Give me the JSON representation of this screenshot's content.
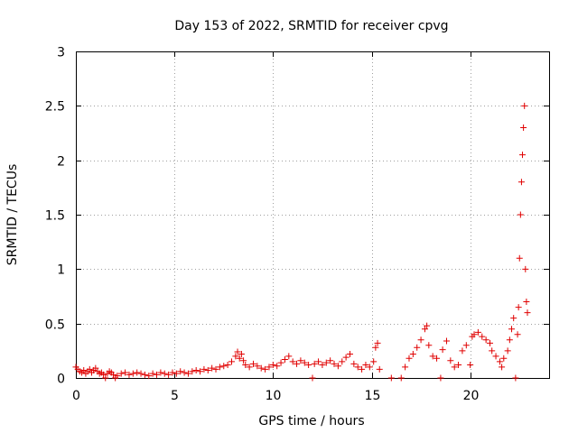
{
  "chart_data": {
    "type": "scatter",
    "title": "Day 153 of 2022, SRMTID for receiver cpvg",
    "xlabel": "GPS time / hours",
    "ylabel": "SRMTID / TECUs",
    "xlim": [
      0,
      24
    ],
    "ylim": [
      0,
      3
    ],
    "grid": true,
    "legend": "none",
    "xticks": [
      0,
      5,
      10,
      15,
      20
    ],
    "xtick_labels": [
      "0",
      "5",
      "10",
      "15",
      "20"
    ],
    "yticks": [
      0,
      0.5,
      1,
      1.5,
      2,
      2.5,
      3
    ],
    "ytick_labels": [
      "0",
      "0.5",
      "1",
      "1.5",
      "2",
      "2.5",
      "3"
    ],
    "series": [
      {
        "name": "cpvg",
        "color": "#e00000",
        "marker": "plus",
        "points": [
          [
            0.0,
            0.1
          ],
          [
            0.1,
            0.08
          ],
          [
            0.2,
            0.06
          ],
          [
            0.3,
            0.05
          ],
          [
            0.4,
            0.07
          ],
          [
            0.5,
            0.04
          ],
          [
            0.6,
            0.06
          ],
          [
            0.7,
            0.08
          ],
          [
            0.8,
            0.05
          ],
          [
            0.9,
            0.07
          ],
          [
            1.0,
            0.09
          ],
          [
            1.1,
            0.06
          ],
          [
            1.2,
            0.04
          ],
          [
            1.3,
            0.05
          ],
          [
            1.4,
            0.03
          ],
          [
            1.5,
            0.0
          ],
          [
            1.6,
            0.04
          ],
          [
            1.7,
            0.06
          ],
          [
            1.8,
            0.05
          ],
          [
            1.9,
            0.03
          ],
          [
            2.0,
            0.0
          ],
          [
            2.1,
            0.02
          ],
          [
            2.3,
            0.04
          ],
          [
            2.5,
            0.05
          ],
          [
            2.7,
            0.03
          ],
          [
            2.9,
            0.04
          ],
          [
            3.1,
            0.05
          ],
          [
            3.3,
            0.04
          ],
          [
            3.5,
            0.03
          ],
          [
            3.7,
            0.02
          ],
          [
            3.9,
            0.04
          ],
          [
            4.1,
            0.03
          ],
          [
            4.3,
            0.05
          ],
          [
            4.5,
            0.04
          ],
          [
            4.7,
            0.03
          ],
          [
            4.9,
            0.05
          ],
          [
            5.1,
            0.04
          ],
          [
            5.3,
            0.06
          ],
          [
            5.5,
            0.05
          ],
          [
            5.7,
            0.04
          ],
          [
            5.9,
            0.06
          ],
          [
            6.1,
            0.07
          ],
          [
            6.3,
            0.06
          ],
          [
            6.5,
            0.08
          ],
          [
            6.7,
            0.07
          ],
          [
            6.9,
            0.09
          ],
          [
            7.1,
            0.08
          ],
          [
            7.3,
            0.1
          ],
          [
            7.5,
            0.11
          ],
          [
            7.7,
            0.12
          ],
          [
            7.9,
            0.15
          ],
          [
            8.1,
            0.2
          ],
          [
            8.2,
            0.24
          ],
          [
            8.3,
            0.18
          ],
          [
            8.4,
            0.22
          ],
          [
            8.5,
            0.16
          ],
          [
            8.6,
            0.12
          ],
          [
            8.8,
            0.1
          ],
          [
            9.0,
            0.13
          ],
          [
            9.2,
            0.11
          ],
          [
            9.4,
            0.09
          ],
          [
            9.6,
            0.08
          ],
          [
            9.8,
            0.1
          ],
          [
            10.0,
            0.12
          ],
          [
            10.2,
            0.11
          ],
          [
            10.4,
            0.14
          ],
          [
            10.6,
            0.17
          ],
          [
            10.8,
            0.2
          ],
          [
            11.0,
            0.15
          ],
          [
            11.2,
            0.13
          ],
          [
            11.4,
            0.16
          ],
          [
            11.6,
            0.14
          ],
          [
            11.8,
            0.12
          ],
          [
            12.0,
            0.0
          ],
          [
            12.1,
            0.13
          ],
          [
            12.3,
            0.15
          ],
          [
            12.5,
            0.12
          ],
          [
            12.7,
            0.14
          ],
          [
            12.9,
            0.16
          ],
          [
            13.1,
            0.13
          ],
          [
            13.3,
            0.11
          ],
          [
            13.5,
            0.15
          ],
          [
            13.7,
            0.19
          ],
          [
            13.9,
            0.22
          ],
          [
            14.1,
            0.13
          ],
          [
            14.3,
            0.1
          ],
          [
            14.5,
            0.08
          ],
          [
            14.7,
            0.12
          ],
          [
            14.9,
            0.1
          ],
          [
            15.1,
            0.15
          ],
          [
            15.2,
            0.28
          ],
          [
            15.3,
            0.32
          ],
          [
            15.4,
            0.08
          ],
          [
            16.0,
            0.0
          ],
          [
            16.5,
            0.0
          ],
          [
            16.7,
            0.1
          ],
          [
            16.9,
            0.18
          ],
          [
            17.1,
            0.22
          ],
          [
            17.3,
            0.28
          ],
          [
            17.5,
            0.35
          ],
          [
            17.7,
            0.45
          ],
          [
            17.8,
            0.48
          ],
          [
            17.9,
            0.3
          ],
          [
            18.1,
            0.2
          ],
          [
            18.3,
            0.18
          ],
          [
            18.5,
            0.0
          ],
          [
            18.6,
            0.26
          ],
          [
            18.8,
            0.34
          ],
          [
            19.0,
            0.16
          ],
          [
            19.2,
            0.1
          ],
          [
            19.4,
            0.12
          ],
          [
            19.6,
            0.25
          ],
          [
            19.8,
            0.3
          ],
          [
            20.0,
            0.12
          ],
          [
            20.1,
            0.38
          ],
          [
            20.2,
            0.4
          ],
          [
            20.4,
            0.42
          ],
          [
            20.6,
            0.38
          ],
          [
            20.8,
            0.35
          ],
          [
            21.0,
            0.32
          ],
          [
            21.1,
            0.25
          ],
          [
            21.3,
            0.2
          ],
          [
            21.5,
            0.15
          ],
          [
            21.6,
            0.1
          ],
          [
            21.7,
            0.18
          ],
          [
            21.9,
            0.25
          ],
          [
            22.0,
            0.35
          ],
          [
            22.1,
            0.45
          ],
          [
            22.2,
            0.55
          ],
          [
            22.3,
            0.0
          ],
          [
            22.4,
            0.4
          ],
          [
            22.45,
            0.65
          ],
          [
            22.5,
            1.1
          ],
          [
            22.55,
            1.5
          ],
          [
            22.6,
            1.8
          ],
          [
            22.65,
            2.05
          ],
          [
            22.7,
            2.3
          ],
          [
            22.75,
            2.5
          ],
          [
            22.8,
            1.0
          ],
          [
            22.85,
            0.7
          ],
          [
            22.9,
            0.6
          ]
        ]
      }
    ]
  }
}
